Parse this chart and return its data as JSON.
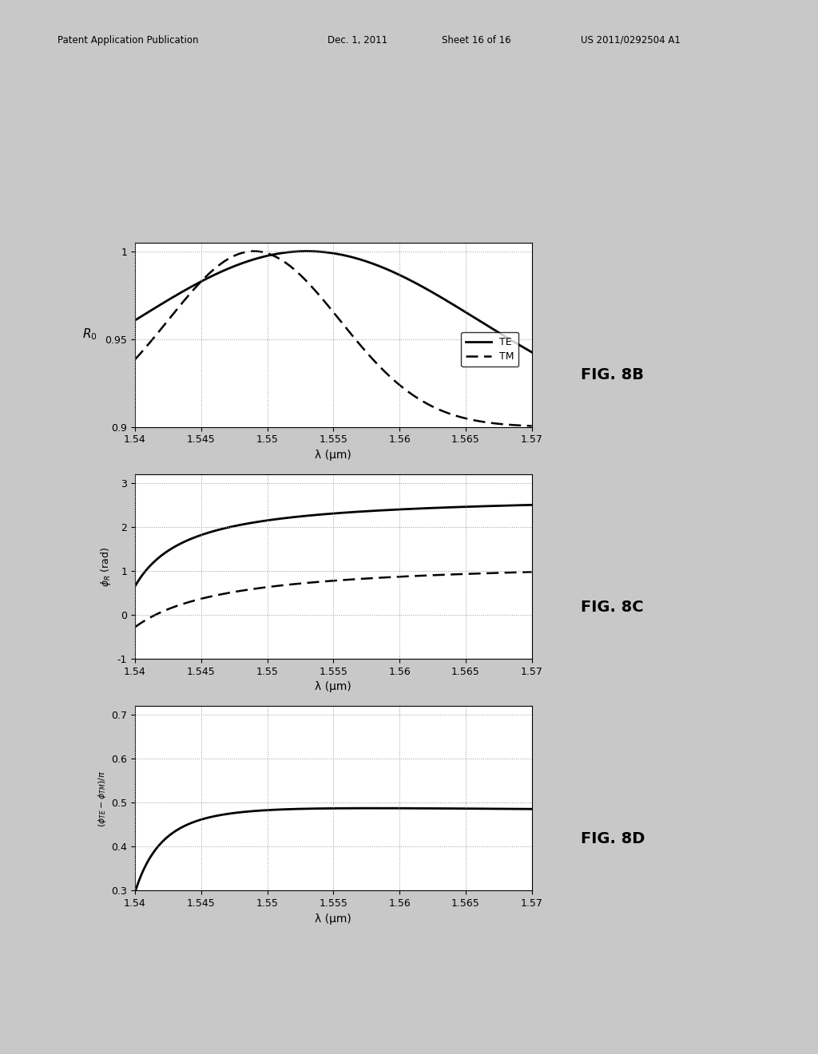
{
  "x_range": [
    1.54,
    1.57
  ],
  "x_ticks": [
    1.54,
    1.545,
    1.55,
    1.555,
    1.56,
    1.565,
    1.57
  ],
  "x_tick_labels": [
    "1.54",
    "1.545",
    "1.55",
    "1.555",
    "1.56",
    "1.565",
    "1.57"
  ],
  "xlabel": "λ (μm)",
  "panel1": {
    "ylim": [
      0.9,
      1.005
    ],
    "yticks": [
      0.9,
      0.95,
      1.0
    ],
    "ytick_labels": [
      "0.9",
      "0.95",
      "1"
    ],
    "fig_label": "FIG. 8B"
  },
  "panel2": {
    "ylim": [
      -1,
      3.2
    ],
    "yticks": [
      -1,
      0,
      1,
      2,
      3
    ],
    "ytick_labels": [
      "-1",
      "0",
      "1",
      "2",
      "3"
    ],
    "fig_label": "FIG. 8C"
  },
  "panel3": {
    "ylim": [
      0.3,
      0.72
    ],
    "yticks": [
      0.3,
      0.4,
      0.5,
      0.6,
      0.7
    ],
    "ytick_labels": [
      "0.3",
      "0.4",
      "0.5",
      "0.6",
      "0.7"
    ],
    "fig_label": "FIG. 8D"
  },
  "page_background": "#c8c8c8",
  "plot_background": "#ffffff",
  "grid_color": "#999999",
  "line_color": "#000000",
  "header_left": "Patent Application Publication",
  "header_date": "Dec. 1, 2011",
  "header_sheet": "Sheet 16 of 16",
  "header_id": "US 2011/0292504 A1"
}
